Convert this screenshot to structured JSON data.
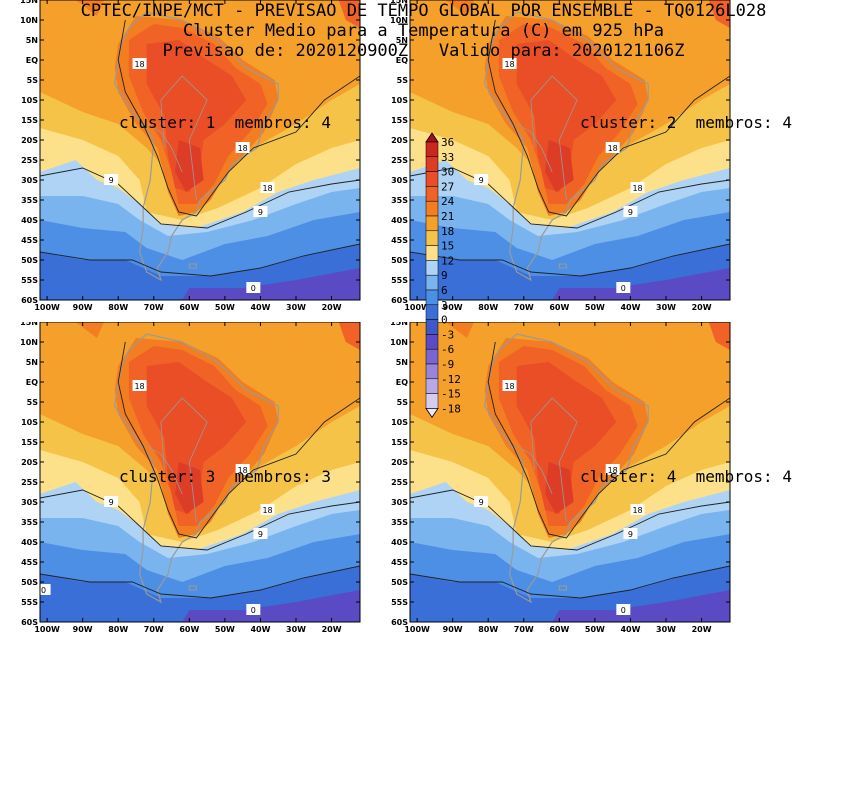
{
  "header": {
    "line1": "CPTEC/INPE/MCT - PREVISAO DE TEMPO GLOBAL POR ENSEMBLE - TQ0126L028",
    "line2": "Cluster Medio para a Temperatura (C) em 925 hPa",
    "line3": "Previsao de: 2020120900Z   Valido para: 2020121106Z"
  },
  "panels": [
    {
      "title": "cluster: 1  membros: 4",
      "labels": [
        "18",
        "18",
        "18",
        "9",
        "9",
        "0"
      ]
    },
    {
      "title": "cluster: 2  membros: 4",
      "labels": [
        "18",
        "18",
        "18",
        "9",
        "9",
        "0"
      ]
    },
    {
      "title": "cluster: 3  membros: 3",
      "labels": [
        "18",
        "18",
        "18",
        "9",
        "9",
        "0",
        "0"
      ]
    },
    {
      "title": "cluster: 4  membros: 4",
      "labels": [
        "18",
        "18",
        "18",
        "9",
        "9",
        "0"
      ]
    }
  ],
  "axes": {
    "lat_ticks": [
      "15N",
      "10N",
      "5N",
      "EQ",
      "5S",
      "10S",
      "15S",
      "20S",
      "25S",
      "30S",
      "35S",
      "40S",
      "45S",
      "50S",
      "55S",
      "60S"
    ],
    "lon_ticks": [
      "100W",
      "90W",
      "80W",
      "70W",
      "60W",
      "50W",
      "40W",
      "30W",
      "20W"
    ]
  },
  "colorbar": {
    "levels": [
      "36",
      "33",
      "30",
      "27",
      "24",
      "21",
      "18",
      "15",
      "12",
      "9",
      "6",
      "3",
      "0",
      "-3",
      "-6",
      "-9",
      "-12",
      "-15",
      "-18"
    ],
    "colors": [
      "#a50f15",
      "#c8281f",
      "#dd3c26",
      "#e94e27",
      "#f06225",
      "#f37d21",
      "#f4a02b",
      "#f5c348",
      "#fde08a",
      "#aed3f5",
      "#7ab4ef",
      "#4e8fe6",
      "#3a6fd8",
      "#3e58c8",
      "#5a4bc4",
      "#7a66d0",
      "#9984da",
      "#b8a8e6",
      "#d6ccf2",
      "#ece6fa"
    ]
  },
  "colors": {
    "coast": "#9a9a9a",
    "contour": "#222222"
  }
}
